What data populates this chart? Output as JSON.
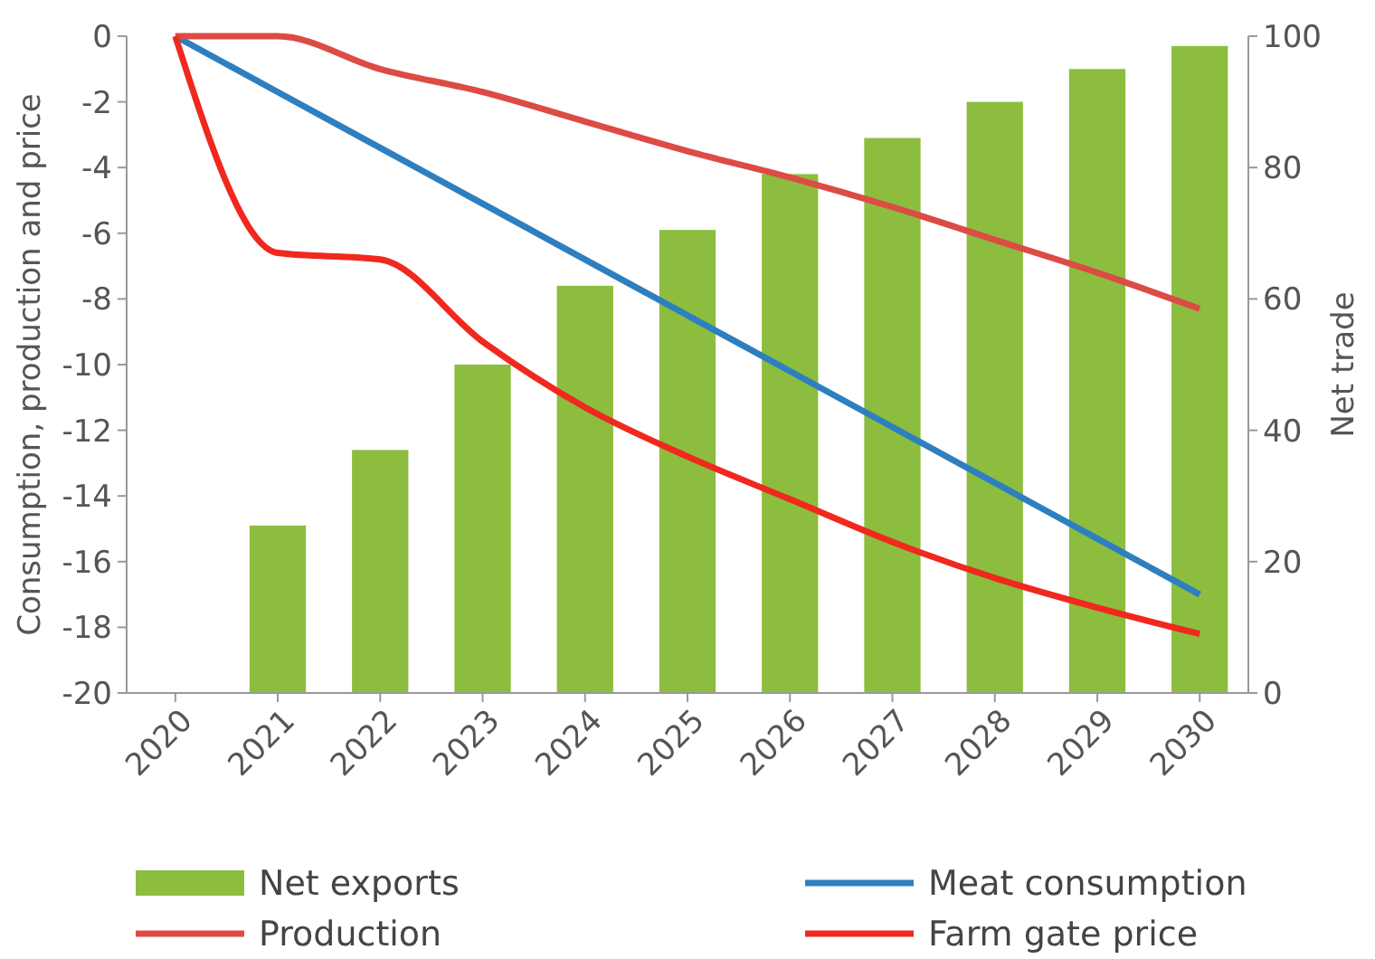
{
  "chart_data": {
    "type": "line",
    "ylabel": "Consumption, production and price",
    "y2label": "Net trade",
    "categories": [
      "2020",
      "2021",
      "2022",
      "2023",
      "2024",
      "2025",
      "2026",
      "2027",
      "2028",
      "2029",
      "2030"
    ],
    "series": [
      {
        "name": "Net exports",
        "type": "bar",
        "axis": "y2",
        "color": "#8cbd3f",
        "values": [
          0,
          25.5,
          37,
          50,
          62,
          70.5,
          79,
          84.5,
          90,
          95,
          98.5
        ]
      },
      {
        "name": "Meat consumption",
        "color": "#2e7fc0",
        "values": [
          0,
          -1.7,
          -3.4,
          -5.1,
          -6.8,
          -8.5,
          -10.2,
          -11.9,
          -13.6,
          -15.3,
          -17
        ]
      },
      {
        "name": "Production",
        "color": "#dd4b45",
        "values": [
          0,
          0,
          -1,
          -1.7,
          -2.6,
          -3.5,
          -4.3,
          -5.2,
          -6.2,
          -7.2,
          -8.3
        ]
      },
      {
        "name": "Farm gate price",
        "color": "#f0281e",
        "values": [
          0,
          -6.6,
          -6.8,
          -9.3,
          -11.3,
          -12.8,
          -14.1,
          -15.4,
          -16.5,
          -17.4,
          -18.2
        ]
      }
    ],
    "ylim": [
      -20,
      0
    ],
    "yticks": [
      -20,
      -18,
      -16,
      -14,
      -12,
      -10,
      -8,
      -6,
      -4,
      -2,
      0
    ],
    "y2lim": [
      0,
      100
    ],
    "y2ticks": [
      0,
      20,
      40,
      60,
      80,
      100
    ],
    "legend": "bottom"
  }
}
